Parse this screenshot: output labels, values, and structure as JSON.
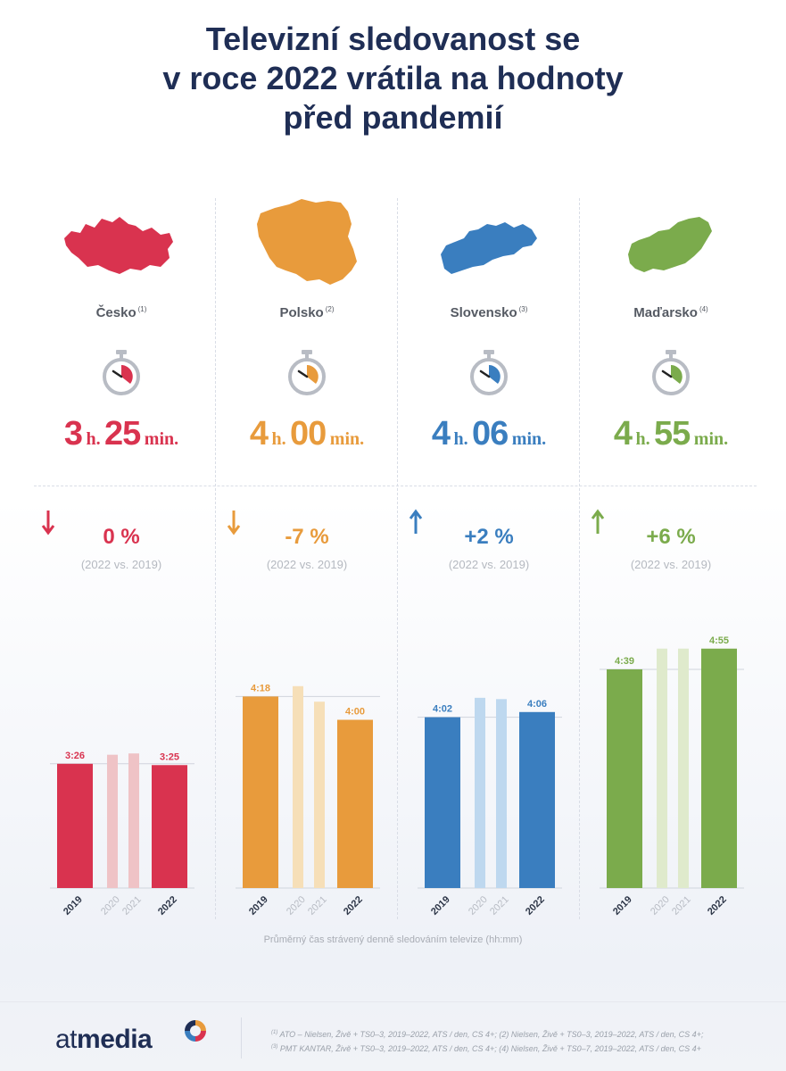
{
  "title": {
    "line1": "Televizní sledovanost se",
    "line2": "v roce 2022 vrátila na hodnoty",
    "line3": "před pandemií"
  },
  "chart_data": {
    "type": "bar",
    "unit": "hh:mm",
    "caption": "Průměrný čas strávený denně sledováním televize (hh:mm)",
    "categories": [
      "2019",
      "2020",
      "2021",
      "2022"
    ],
    "series": [
      {
        "name": "Česko",
        "note": "(1)",
        "color": "#d9334f",
        "light_color": "#efc3c6",
        "duration": {
          "hours": "3",
          "h_unit": "h.",
          "minutes": "25",
          "min_unit": "min."
        },
        "change": "0 %",
        "compare": "(2022 vs. 2019)",
        "direction": "down",
        "values_min": [
          206,
          213,
          214,
          205
        ],
        "labels": [
          "3:26",
          "",
          "",
          "3:25"
        ]
      },
      {
        "name": "Polsko",
        "note": "(2)",
        "color": "#e89b3c",
        "light_color": "#f6dfb8",
        "duration": {
          "hours": "4",
          "h_unit": "h.",
          "minutes": "00",
          "min_unit": "min."
        },
        "change": "-7 %",
        "compare": "(2022 vs. 2019)",
        "direction": "down",
        "values_min": [
          258,
          266,
          254,
          240
        ],
        "labels": [
          "4:18",
          "",
          "",
          "4:00"
        ]
      },
      {
        "name": "Slovensko",
        "note": "(3)",
        "color": "#3a7ebf",
        "light_color": "#bed8ef",
        "duration": {
          "hours": "4",
          "h_unit": "h.",
          "minutes": "06",
          "min_unit": "min."
        },
        "change": "+2 %",
        "compare": "(2022 vs. 2019)",
        "direction": "up",
        "values_min": [
          242,
          257,
          256,
          246
        ],
        "labels": [
          "4:02",
          "",
          "",
          "4:06"
        ]
      },
      {
        "name": "Maďarsko",
        "note": "(4)",
        "color": "#7bab4c",
        "light_color": "#dfeacc",
        "duration": {
          "hours": "4",
          "h_unit": "h.",
          "minutes": "55",
          "min_unit": "min."
        },
        "change": "+6 %",
        "compare": "(2022 vs. 2019)",
        "direction": "up",
        "values_min": [
          279,
          295,
          295,
          295
        ],
        "labels": [
          "4:39",
          "",
          "",
          "4:55"
        ]
      }
    ]
  },
  "footer": {
    "logo_prefix": "at",
    "logo_bold": "media",
    "source_line1": "ATO – Nielsen, Živě + TS0–3, 2019–2022, ATS / den, CS 4+; (2) Nielsen, Živě + TS0–3, 2019–2022, ATS / den, CS 4+;",
    "source_line2": "PMT KANTAR, Živě + TS0–3, 2019–2022, ATS / den, CS 4+; (4) Nielsen, Živě + TS0–7, 2019–2022, ATS / den, CS 4+",
    "source_mark1": "(1)",
    "source_mark3": "(3)"
  }
}
